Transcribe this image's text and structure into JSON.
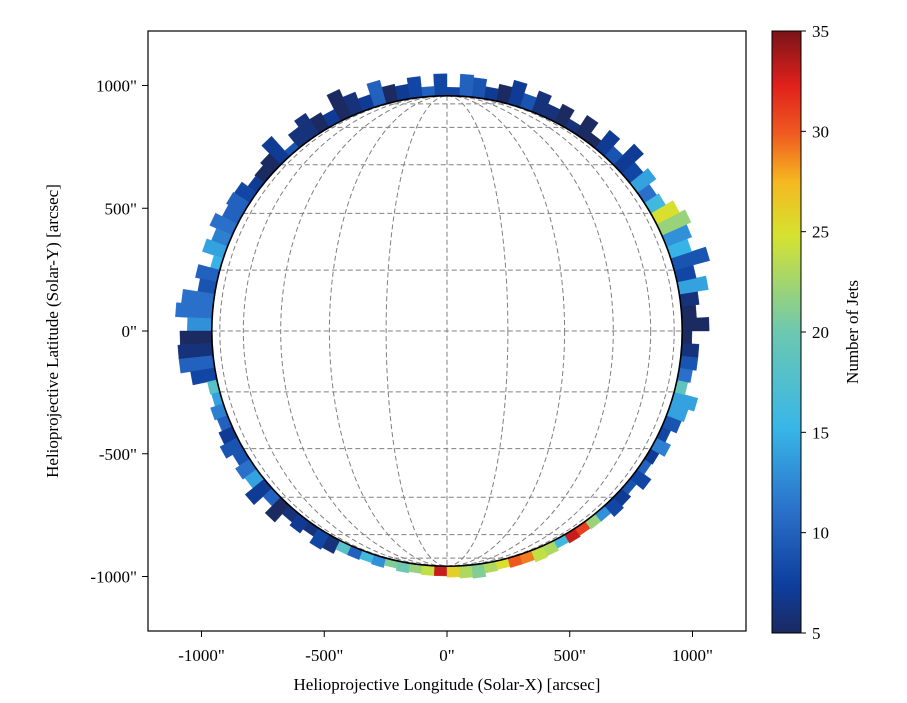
{
  "chart_data": {
    "type": "polar-histogram",
    "xlabel": "Helioprojective Longitude (Solar-X) [arcsec]",
    "ylabel": "Helioprojective Latitude (Solar-Y) [arcsec]",
    "xlim": [
      -1230,
      1230
    ],
    "ylim": [
      -1230,
      1230
    ],
    "x_ticks": [
      -1000,
      -500,
      0,
      500,
      1000
    ],
    "x_tick_labels": [
      "-1000\"",
      "-500\"",
      "0\"",
      "500\"",
      "1000\""
    ],
    "y_ticks": [
      1000,
      500,
      0,
      -500,
      -1000
    ],
    "y_tick_labels": [
      "1000\"",
      "500\"",
      "0\"",
      "-500\"",
      "-1000\""
    ],
    "solar_radius_arcsec": 958,
    "grid": true,
    "colorbar": {
      "label": "Number of Jets",
      "min": 5,
      "max": 35,
      "ticks": [
        5,
        10,
        15,
        20,
        25,
        30,
        35
      ],
      "tick_labels": [
        "5",
        "10",
        "15",
        "20",
        "25",
        "30",
        "35"
      ]
    },
    "bin_width_deg": 3,
    "bins_angle_start_deg": [
      0,
      3,
      6,
      9,
      12,
      15,
      18,
      21,
      24,
      27,
      30,
      33,
      36,
      39,
      42,
      45,
      48,
      51,
      54,
      57,
      60,
      63,
      66,
      69,
      72,
      75,
      78,
      81,
      84,
      87,
      90,
      93,
      96,
      99,
      102,
      105,
      108,
      111,
      114,
      117,
      120,
      123,
      126,
      129,
      132,
      135,
      138,
      141,
      144,
      147,
      150,
      153,
      156,
      159,
      162,
      165,
      168,
      171,
      174,
      177,
      180,
      183,
      186,
      189,
      192,
      195,
      198,
      201,
      204,
      207,
      210,
      213,
      216,
      219,
      222,
      225,
      228,
      231,
      234,
      237,
      240,
      243,
      246,
      249,
      252,
      255,
      258,
      261,
      264,
      267,
      270,
      273,
      276,
      279,
      282,
      285,
      288,
      291,
      294,
      297,
      300,
      303,
      306,
      309,
      312,
      315,
      318,
      321,
      324,
      327,
      330,
      333,
      336,
      339,
      342,
      345,
      348,
      351,
      354,
      357
    ],
    "counts": [
      4,
      5,
      6,
      14,
      8,
      9,
      15,
      13,
      22,
      25,
      16,
      11,
      14,
      8,
      7,
      9,
      7,
      5,
      5,
      6,
      5,
      6,
      6,
      9,
      7,
      5,
      7,
      9,
      10,
      8,
      8,
      10,
      8,
      7,
      5,
      10,
      7,
      6,
      4,
      7,
      5,
      6,
      6,
      9,
      7,
      5,
      5,
      7,
      8,
      10,
      10,
      11,
      12,
      14,
      15,
      10,
      9,
      11,
      11,
      13,
      5,
      6,
      10,
      8,
      18,
      14,
      12,
      10,
      7,
      9,
      9,
      11,
      14,
      7,
      10,
      5,
      6,
      7,
      6,
      8,
      6,
      18,
      10,
      16,
      13,
      21,
      20,
      22,
      24,
      33,
      26,
      23,
      21,
      23,
      25,
      30,
      29,
      24,
      23,
      16,
      33,
      31,
      22,
      13,
      8,
      7,
      9,
      8,
      10,
      7,
      12,
      8,
      9,
      14,
      14,
      19,
      11,
      9,
      6,
      5
    ],
    "lengths_arcsec": [
      110,
      60,
      75,
      120,
      80,
      150,
      90,
      110,
      130,
      105,
      70,
      60,
      95,
      70,
      120,
      55,
      95,
      40,
      90,
      40,
      80,
      55,
      90,
      60,
      100,
      70,
      50,
      80,
      90,
      35,
      90,
      40,
      85,
      60,
      70,
      100,
      55,
      85,
      120,
      55,
      70,
      100,
      70,
      30,
      110,
      65,
      50,
      45,
      75,
      80,
      70,
      100,
      70,
      90,
      40,
      90,
      70,
      130,
      150,
      100,
      130,
      140,
      140,
      100,
      40,
      35,
      55,
      45,
      60,
      80,
      50,
      70,
      60,
      100,
      50,
      90,
      45,
      60,
      40,
      70,
      60,
      40,
      40,
      35,
      40,
      30,
      40,
      35,
      40,
      40,
      45,
      50,
      55,
      40,
      35,
      40,
      40,
      50,
      45,
      35,
      40,
      35,
      40,
      40,
      60,
      50,
      35,
      70,
      35,
      40,
      65,
      40,
      65,
      75,
      100,
      45,
      55,
      70,
      70,
      40
    ]
  }
}
